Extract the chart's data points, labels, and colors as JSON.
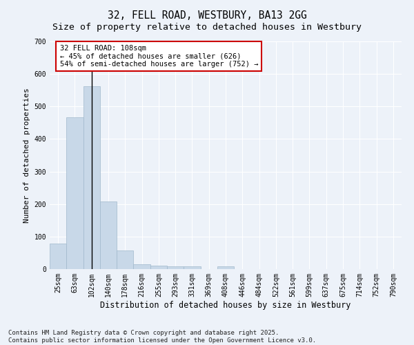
{
  "title": "32, FELL ROAD, WESTBURY, BA13 2GG",
  "subtitle": "Size of property relative to detached houses in Westbury",
  "xlabel": "Distribution of detached houses by size in Westbury",
  "ylabel": "Number of detached properties",
  "bar_color": "#c8d8e8",
  "bar_edge_color": "#a0b8cc",
  "vline_color": "#000000",
  "vline_x_index": 2,
  "annotation_text": "32 FELL ROAD: 108sqm\n← 45% of detached houses are smaller (626)\n54% of semi-detached houses are larger (752) →",
  "annotation_box_facecolor": "#ffffff",
  "annotation_box_edgecolor": "#cc0000",
  "categories": [
    "25sqm",
    "63sqm",
    "102sqm",
    "140sqm",
    "178sqm",
    "216sqm",
    "255sqm",
    "293sqm",
    "331sqm",
    "369sqm",
    "408sqm",
    "446sqm",
    "484sqm",
    "522sqm",
    "561sqm",
    "599sqm",
    "637sqm",
    "675sqm",
    "714sqm",
    "752sqm",
    "790sqm"
  ],
  "values": [
    78,
    467,
    562,
    207,
    57,
    15,
    10,
    9,
    9,
    0,
    8,
    0,
    0,
    0,
    0,
    0,
    0,
    0,
    0,
    0,
    0
  ],
  "ylim": [
    0,
    700
  ],
  "yticks": [
    0,
    100,
    200,
    300,
    400,
    500,
    600,
    700
  ],
  "background_color": "#edf2f9",
  "grid_color": "#ffffff",
  "footer_text": "Contains HM Land Registry data © Crown copyright and database right 2025.\nContains public sector information licensed under the Open Government Licence v3.0.",
  "title_fontsize": 10.5,
  "subtitle_fontsize": 9.5,
  "xlabel_fontsize": 8.5,
  "ylabel_fontsize": 8,
  "tick_fontsize": 7,
  "annot_fontsize": 7.5,
  "footer_fontsize": 6.5
}
